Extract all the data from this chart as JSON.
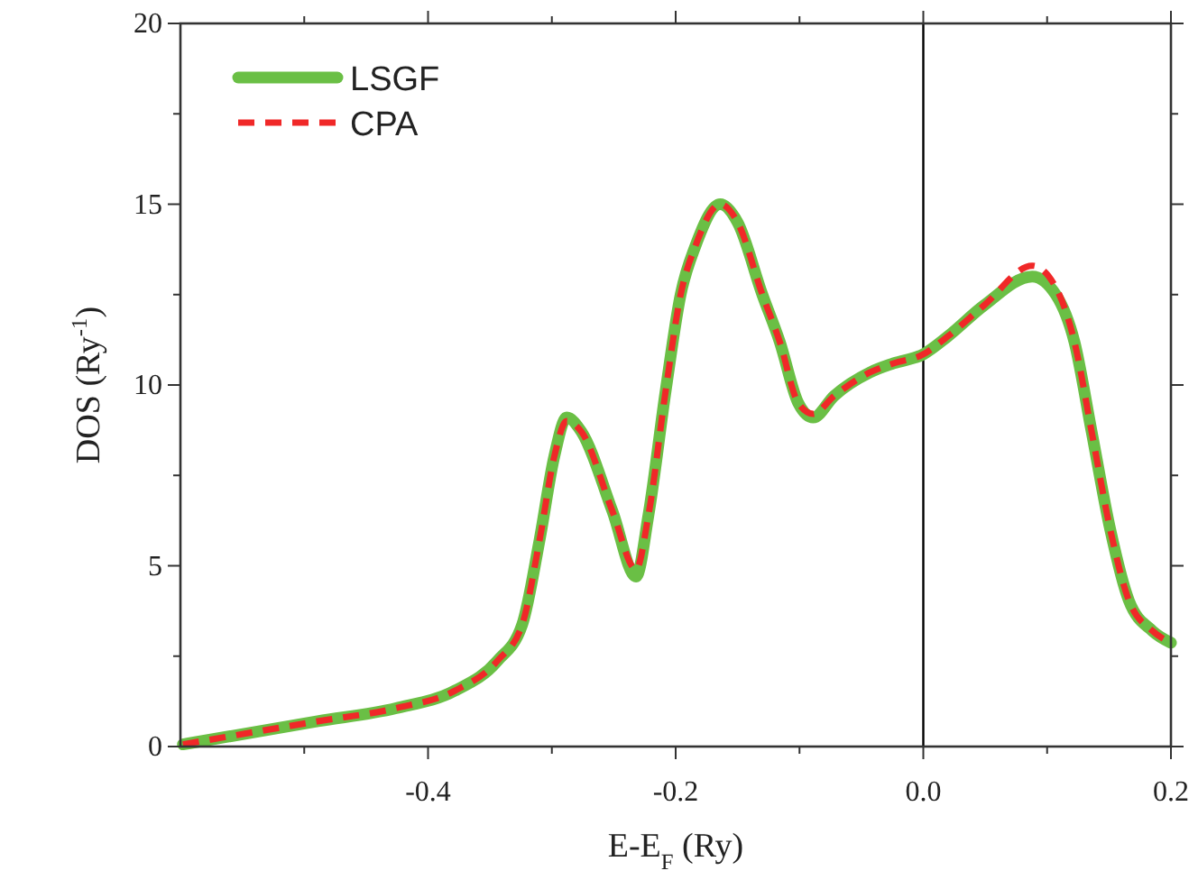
{
  "chart_data": {
    "type": "line",
    "xlabel": "E-E$_{F}$ (Ry)",
    "ylabel": "DOS (Ry$^{-1}$)",
    "xlim": [
      -0.6,
      0.2
    ],
    "ylim": [
      0,
      20
    ],
    "xticks": [
      {
        "value": -0.5,
        "label": null
      },
      -0.4,
      {
        "value": -0.3,
        "label": null
      },
      -0.2,
      {
        "value": -0.1,
        "label": null
      },
      {
        "value": 0,
        "label": "0.0"
      },
      {
        "value": 0.1,
        "label": null
      },
      0.2
    ],
    "yticks": [
      0,
      {
        "value": 2.5,
        "label": null
      },
      5,
      {
        "value": 7.5,
        "label": null
      },
      10,
      {
        "value": 12.5,
        "label": null
      },
      15,
      {
        "value": 17.5,
        "label": null
      },
      20
    ],
    "x": [
      -0.598,
      -0.489,
      -0.426,
      -0.378,
      -0.344,
      -0.324,
      -0.31,
      -0.298,
      -0.288,
      -0.276,
      -0.251,
      -0.232,
      -0.222,
      -0.208,
      -0.196,
      -0.184,
      -0.164,
      -0.15,
      -0.13,
      -0.116,
      -0.101,
      -0.089,
      -0.072,
      -0.043,
      -0.024,
      0,
      0.02,
      0.049,
      0.088,
      0.107,
      0.122,
      0.136,
      0.151,
      0.166,
      0.185,
      0.2
    ],
    "series": [
      {
        "name": "LSGF",
        "color": "#6abf45",
        "line_style": "solid",
        "values": [
          0.06,
          0.7,
          1.06,
          1.55,
          2.37,
          3.37,
          5.7,
          8.03,
          9.1,
          8.7,
          6.5,
          4.7,
          6.4,
          9.86,
          12.5,
          13.85,
          15.0,
          14.5,
          12.5,
          11.2,
          9.5,
          9.1,
          9.7,
          10.35,
          10.6,
          10.85,
          11.35,
          12.2,
          13.0,
          12.5,
          11.2,
          8.7,
          6.0,
          4.04,
          3.2,
          2.87
        ]
      },
      {
        "name": "CPA",
        "color": "#f02828",
        "line_style": "dashed",
        "values": [
          0.06,
          0.7,
          1.06,
          1.55,
          2.37,
          3.37,
          5.7,
          8.03,
          9.0,
          8.7,
          6.5,
          4.9,
          6.4,
          9.86,
          12.5,
          13.85,
          15.0,
          14.5,
          12.5,
          11.2,
          9.5,
          9.2,
          9.7,
          10.35,
          10.6,
          10.85,
          11.35,
          12.2,
          13.3,
          12.7,
          11.2,
          8.7,
          6.0,
          4.04,
          3.2,
          2.87
        ]
      }
    ],
    "ref_lines": [
      {
        "axis": "x",
        "value": 0,
        "color": "#000000"
      }
    ],
    "legend": "top left",
    "grid": false
  }
}
